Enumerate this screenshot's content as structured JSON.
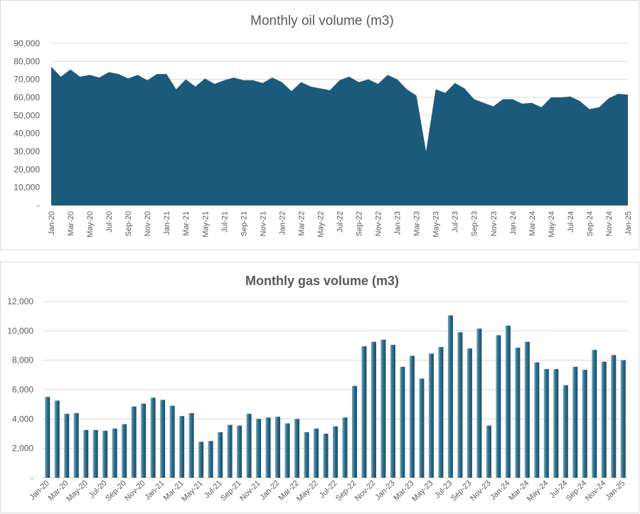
{
  "chart_data": [
    {
      "type": "area",
      "title": "Monthly oil volume (m3)",
      "xlabel": "",
      "ylabel": "",
      "ylim": [
        0,
        90000
      ],
      "yticks": [
        0,
        10000,
        20000,
        30000,
        40000,
        50000,
        60000,
        70000,
        80000,
        90000
      ],
      "ytick_labels": [
        "-",
        "10,000",
        "20,000",
        "30,000",
        "40,000",
        "50,000",
        "60,000",
        "70,000",
        "80,000",
        "90,000"
      ],
      "grid": true,
      "color": "#1b5a7a",
      "x_tick_labels": [
        "Jan-20",
        "Mar-20",
        "May-20",
        "Jul-20",
        "Sep-20",
        "Nov-20",
        "Jan-21",
        "Mar-21",
        "May-21",
        "Jul-21",
        "Sep-21",
        "Nov-21",
        "Jan-22",
        "Mar-22",
        "May-22",
        "Jul-22",
        "Sep-22",
        "Nov-22",
        "Jan-23",
        "Mar-23",
        "May-23",
        "Jul-23",
        "Sep-23",
        "Nov-23",
        "Jan-24",
        "Mar-24",
        "May-24",
        "Jul-24",
        "Sep-24",
        "Nov-24",
        "Jan-25"
      ],
      "values": [
        77000,
        71500,
        75500,
        71500,
        72500,
        71000,
        74000,
        73000,
        70500,
        72500,
        69500,
        73000,
        73000,
        64500,
        70000,
        66000,
        70500,
        67500,
        69500,
        71000,
        69500,
        69500,
        68000,
        71000,
        68500,
        63500,
        68500,
        66000,
        65000,
        64000,
        69500,
        71500,
        68500,
        70000,
        67500,
        72500,
        70000,
        64500,
        61000,
        30000,
        64500,
        62500,
        68000,
        65000,
        59000,
        57000,
        55000,
        59000,
        59000,
        56500,
        57000,
        54500,
        60000,
        60000,
        60500,
        58000,
        53500,
        54500,
        59500,
        62000,
        61500
      ]
    },
    {
      "type": "bar",
      "title": "Monthly gas volume (m3)",
      "xlabel": "",
      "ylabel": "",
      "ylim": [
        0,
        12000
      ],
      "yticks": [
        0,
        2000,
        4000,
        6000,
        8000,
        10000,
        12000
      ],
      "ytick_labels": [
        "-",
        "2,000",
        "4,000",
        "6,000",
        "8,000",
        "10,000",
        "12,000"
      ],
      "grid": true,
      "color": "#2a6f8f",
      "x_tick_labels": [
        "Jan-20",
        "Mar-20",
        "May-20",
        "Jul-20",
        "Sep-20",
        "Nov-20",
        "Jan-21",
        "Mar-21",
        "May-21",
        "Jul-21",
        "Sep-21",
        "Nov-21",
        "Jan-22",
        "Mar-22",
        "May-22",
        "Jul-22",
        "Sep-22",
        "Nov-22",
        "Jan-23",
        "Mar-23",
        "May-23",
        "Jul-23",
        "Sep-23",
        "Nov-23",
        "Jan-24",
        "Mar-24",
        "May-24",
        "Jul-24",
        "Sep-24",
        "Nov-24",
        "Jan-25"
      ],
      "values": [
        5500,
        5250,
        4350,
        4400,
        3250,
        3250,
        3200,
        3350,
        3650,
        4850,
        5050,
        5450,
        5300,
        4900,
        4200,
        4400,
        2450,
        2500,
        3100,
        3600,
        3550,
        4350,
        4000,
        4100,
        4150,
        3700,
        4000,
        3100,
        3350,
        3000,
        3500,
        4100,
        6250,
        8950,
        9250,
        9400,
        9050,
        7550,
        8300,
        6750,
        8450,
        8900,
        11050,
        9900,
        8800,
        10150,
        3550,
        9700,
        10350,
        8850,
        9250,
        7850,
        7400,
        7400,
        6300,
        7550,
        7350,
        8700,
        7900,
        8350,
        8000
      ]
    }
  ]
}
